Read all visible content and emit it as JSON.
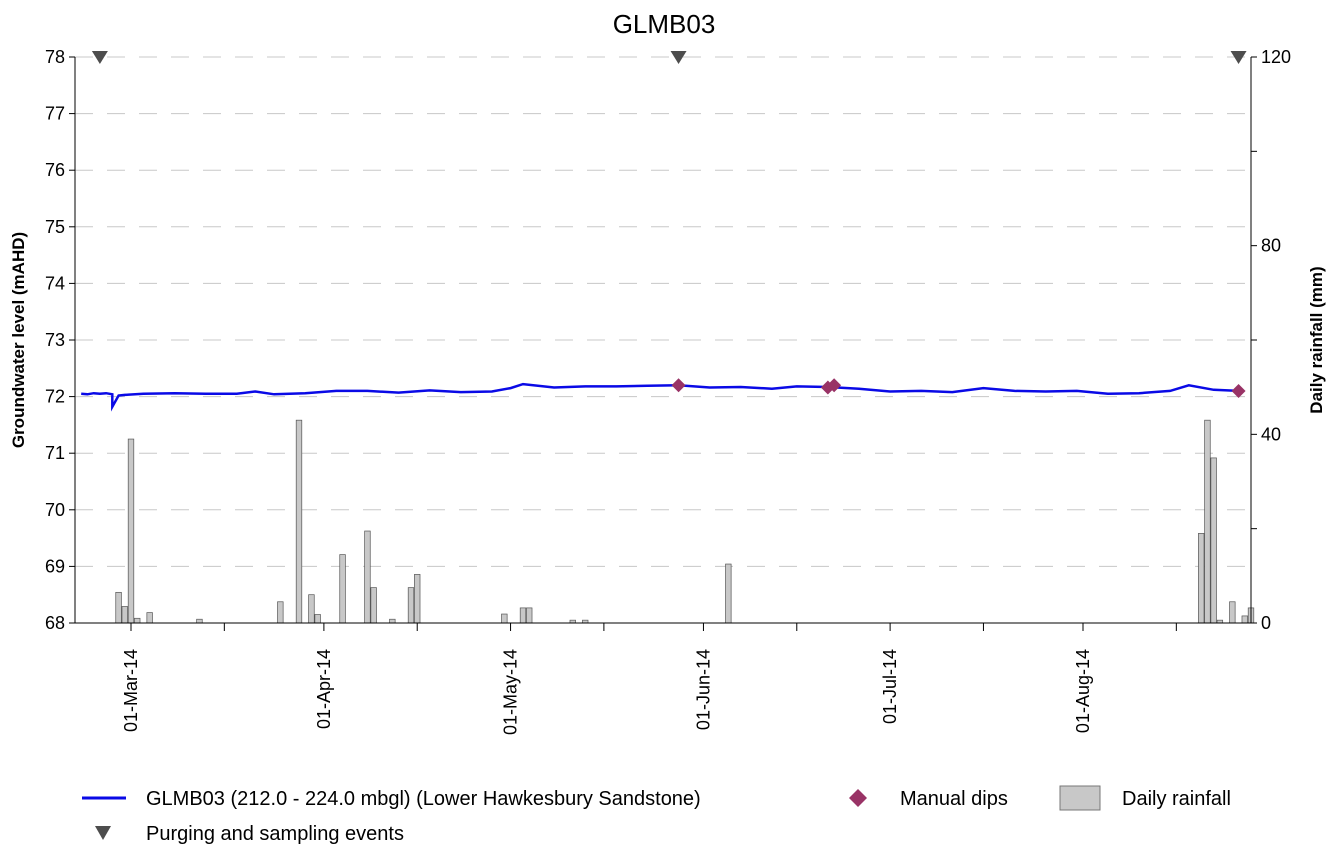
{
  "chart_data": {
    "type": "line",
    "title": "GLMB03",
    "ylabel": "Groundwater level (mAHD)",
    "y2label": "Daily rainfall (mm)",
    "ylim": [
      68,
      78
    ],
    "y2lim": [
      0,
      120
    ],
    "xlim": [
      "2014-02-20",
      "2014-08-28"
    ],
    "y_ticks": [
      "68",
      "69",
      "70",
      "71",
      "72",
      "73",
      "74",
      "75",
      "76",
      "77",
      "78"
    ],
    "y2_ticks": [
      "0",
      "40",
      "80",
      "120"
    ],
    "x_ticks": [
      {
        "date": "2014-03-01",
        "label": "01-Mar-14"
      },
      {
        "date": "2014-04-01",
        "label": "01-Apr-14"
      },
      {
        "date": "2014-05-01",
        "label": "01-May-14"
      },
      {
        "date": "2014-06-01",
        "label": "01-Jun-14"
      },
      {
        "date": "2014-07-01",
        "label": "01-Jul-14"
      },
      {
        "date": "2014-08-01",
        "label": "01-Aug-14"
      }
    ],
    "grid": "horizontal-dashed",
    "legend_position": "bottom",
    "colors": {
      "level": "#0a0ae6",
      "dips": "#993366",
      "rain_fill": "#c8c8c8",
      "rain_stroke": "#555555",
      "events": "#4d4d4d"
    },
    "series": [
      {
        "name": "GLMB03 (212.0 - 224.0 mbgl) (Lower Hawkesbury Sandstone)",
        "kind": "line",
        "points": [
          [
            "2014-02-21",
            72.05
          ],
          [
            "2014-02-22",
            72.04
          ],
          [
            "2014-02-23",
            72.06
          ],
          [
            "2014-02-24",
            72.05
          ],
          [
            "2014-02-25",
            72.06
          ],
          [
            "2014-02-26",
            72.04
          ],
          [
            "2014-02-26",
            71.82
          ],
          [
            "2014-02-27",
            72.02
          ],
          [
            "2014-02-28",
            72.03
          ],
          [
            "2014-03-03",
            72.05
          ],
          [
            "2014-03-08",
            72.06
          ],
          [
            "2014-03-13",
            72.05
          ],
          [
            "2014-03-18",
            72.05
          ],
          [
            "2014-03-21",
            72.09
          ],
          [
            "2014-03-24",
            72.04
          ],
          [
            "2014-03-29",
            72.06
          ],
          [
            "2014-04-03",
            72.1
          ],
          [
            "2014-04-08",
            72.1
          ],
          [
            "2014-04-13",
            72.07
          ],
          [
            "2014-04-18",
            72.11
          ],
          [
            "2014-04-23",
            72.08
          ],
          [
            "2014-04-28",
            72.09
          ],
          [
            "2014-05-01",
            72.15
          ],
          [
            "2014-05-03",
            72.22
          ],
          [
            "2014-05-08",
            72.16
          ],
          [
            "2014-05-13",
            72.18
          ],
          [
            "2014-05-18",
            72.18
          ],
          [
            "2014-05-23",
            72.19
          ],
          [
            "2014-05-28",
            72.2
          ],
          [
            "2014-06-02",
            72.16
          ],
          [
            "2014-06-07",
            72.17
          ],
          [
            "2014-06-12",
            72.14
          ],
          [
            "2014-06-16",
            72.18
          ],
          [
            "2014-06-21",
            72.17
          ],
          [
            "2014-06-26",
            72.14
          ],
          [
            "2014-07-01",
            72.09
          ],
          [
            "2014-07-06",
            72.1
          ],
          [
            "2014-07-11",
            72.08
          ],
          [
            "2014-07-16",
            72.15
          ],
          [
            "2014-07-21",
            72.1
          ],
          [
            "2014-07-26",
            72.09
          ],
          [
            "2014-07-31",
            72.1
          ],
          [
            "2014-08-05",
            72.05
          ],
          [
            "2014-08-10",
            72.06
          ],
          [
            "2014-08-15",
            72.1
          ],
          [
            "2014-08-18",
            72.2
          ],
          [
            "2014-08-22",
            72.12
          ],
          [
            "2014-08-26",
            72.1
          ]
        ]
      },
      {
        "name": "Manual dips",
        "kind": "marker",
        "points": [
          [
            "2014-05-28",
            72.2
          ],
          [
            "2014-06-21",
            72.16
          ],
          [
            "2014-06-22",
            72.2
          ],
          [
            "2014-08-26",
            72.1
          ]
        ]
      },
      {
        "name": "Daily rainfall",
        "kind": "bar",
        "axis": "y2",
        "points": [
          [
            "2014-02-27",
            6.5
          ],
          [
            "2014-02-28",
            3.5
          ],
          [
            "2014-03-01",
            39
          ],
          [
            "2014-03-02",
            1
          ],
          [
            "2014-03-04",
            2.2
          ],
          [
            "2014-03-12",
            0.8
          ],
          [
            "2014-03-25",
            4.5
          ],
          [
            "2014-03-28",
            43
          ],
          [
            "2014-03-30",
            6
          ],
          [
            "2014-03-31",
            1.8
          ],
          [
            "2014-04-04",
            14.5
          ],
          [
            "2014-04-08",
            19.5
          ],
          [
            "2014-04-09",
            7.5
          ],
          [
            "2014-04-12",
            0.8
          ],
          [
            "2014-04-15",
            7.5
          ],
          [
            "2014-04-16",
            10.3
          ],
          [
            "2014-04-30",
            1.9
          ],
          [
            "2014-05-03",
            3.2
          ],
          [
            "2014-05-04",
            3.2
          ],
          [
            "2014-05-11",
            0.6
          ],
          [
            "2014-05-13",
            0.6
          ],
          [
            "2014-06-05",
            12.5
          ],
          [
            "2014-08-20",
            19
          ],
          [
            "2014-08-21",
            43
          ],
          [
            "2014-08-22",
            35
          ],
          [
            "2014-08-23",
            0.6
          ],
          [
            "2014-08-25",
            4.5
          ],
          [
            "2014-08-27",
            1.5
          ],
          [
            "2014-08-28",
            3.2
          ]
        ]
      },
      {
        "name": "Purging and sampling events",
        "kind": "marker",
        "axis": "top",
        "points": [
          "2014-02-24",
          "2014-05-28",
          "2014-08-26"
        ]
      }
    ]
  }
}
